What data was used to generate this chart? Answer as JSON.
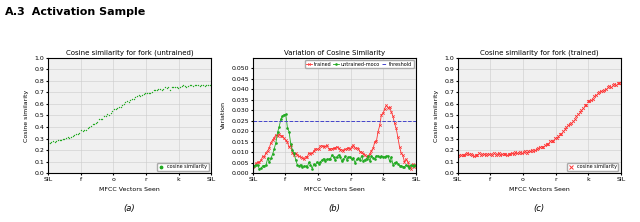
{
  "title_a3": "A.3",
  "title_rest": "  Activation Sample",
  "plot_a": {
    "title": "Cosine similarity for fork (untrained)",
    "xlabel": "MFCC Vectors Seen",
    "ylabel": "Cosine similarity",
    "xtick_labels": [
      "SIL",
      "f",
      "o",
      "r",
      "k",
      "SIL"
    ],
    "ylim": [
      0.0,
      1.0
    ],
    "yticks": [
      0.0,
      0.1,
      0.2,
      0.3,
      0.4,
      0.5,
      0.6,
      0.7,
      0.8,
      0.9,
      1.0
    ],
    "legend_label": "cosine similarity",
    "color": "#22aa22",
    "caption": "(a)"
  },
  "plot_b": {
    "title": "Variation of Cosine Similarity",
    "xlabel": "MFCC Vectors Seen",
    "ylabel": "Variation",
    "xtick_labels": [
      "SIL",
      "f",
      "o",
      "r",
      "k",
      "SIL"
    ],
    "ylim": [
      0.0,
      0.055
    ],
    "yticks": [
      0.0,
      0.005,
      0.01,
      0.015,
      0.02,
      0.025,
      0.03,
      0.035,
      0.04,
      0.045,
      0.05
    ],
    "threshold": 0.025,
    "legend_trained": "trained",
    "legend_untrained": "untrained-moco",
    "legend_threshold": "threshold",
    "color_trained": "#ff3333",
    "color_untrained": "#22aa22",
    "color_threshold": "#4444cc",
    "caption": "(b)"
  },
  "plot_c": {
    "title": "Cosine similarity for fork (trained)",
    "xlabel": "MFCC Vectors Seen",
    "ylabel": "Cosine similarity",
    "xtick_labels": [
      "SIL",
      "f",
      "o",
      "r",
      "k",
      "SIL"
    ],
    "ylim": [
      0.0,
      1.0
    ],
    "yticks": [
      0.0,
      0.1,
      0.2,
      0.3,
      0.4,
      0.5,
      0.6,
      0.7,
      0.8,
      0.9,
      1.0
    ],
    "legend_label": "cosine similarity",
    "color": "#ff3333",
    "caption": "(c)"
  }
}
